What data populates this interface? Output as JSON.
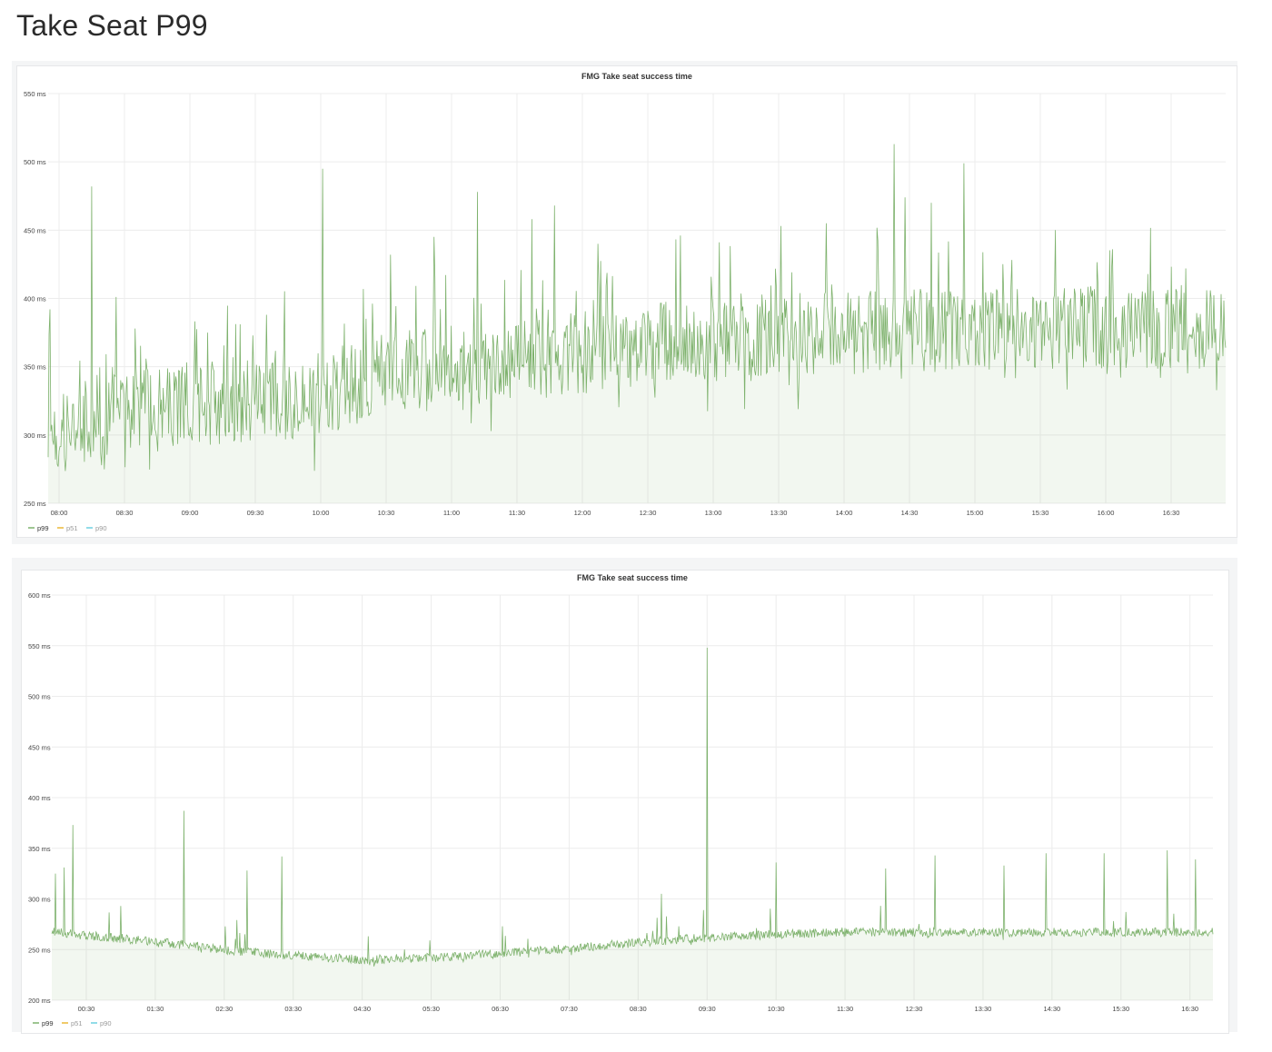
{
  "page": {
    "title": "Take Seat P99"
  },
  "chart_data": [
    {
      "type": "area",
      "title": "FMG Take seat success time",
      "xlabel": "",
      "ylabel": "",
      "y_unit": "ms",
      "ylim": [
        250,
        550
      ],
      "yticks": [
        "250 ms",
        "300 ms",
        "350 ms",
        "400 ms",
        "450 ms",
        "500 ms",
        "550 ms"
      ],
      "xlim": [
        "07:55",
        "16:55"
      ],
      "xticks": [
        "08:00",
        "08:30",
        "09:00",
        "09:30",
        "10:00",
        "10:30",
        "11:00",
        "11:30",
        "12:00",
        "12:30",
        "13:00",
        "13:30",
        "14:00",
        "14:30",
        "15:00",
        "15:30",
        "16:00",
        "16:30"
      ],
      "grid": true,
      "legend_position": "bottom-left",
      "colors": {
        "p99": "#7eb26d",
        "p51": "#eab839",
        "p90": "#6ed0e0"
      },
      "series": [
        {
          "name": "p99",
          "color": "#7eb26d",
          "baseline_ms": [
            [
              "07:55",
              300
            ],
            [
              "08:30",
              320
            ],
            [
              "09:30",
              325
            ],
            [
              "10:00",
              330
            ],
            [
              "10:30",
              345
            ],
            [
              "11:00",
              350
            ],
            [
              "11:30",
              355
            ],
            [
              "12:00",
              360
            ],
            [
              "12:30",
              365
            ],
            [
              "13:00",
              370
            ],
            [
              "14:00",
              375
            ],
            [
              "15:00",
              378
            ],
            [
              "16:55",
              378
            ]
          ],
          "peaks_ms": [
            [
              "07:56",
              392
            ],
            [
              "08:15",
              482
            ],
            [
              "08:35",
              378
            ],
            [
              "09:35",
              388
            ],
            [
              "10:01",
              495
            ],
            [
              "10:32",
              432
            ],
            [
              "10:52",
              445
            ],
            [
              "11:12",
              478
            ],
            [
              "11:37",
              458
            ],
            [
              "11:47",
              468
            ],
            [
              "12:07",
              440
            ],
            [
              "12:45",
              446
            ],
            [
              "13:31",
              453
            ],
            [
              "13:52",
              455
            ],
            [
              "14:23",
              513
            ],
            [
              "14:28",
              474
            ],
            [
              "14:40",
              470
            ],
            [
              "14:55",
              499
            ],
            [
              "16:03",
              436
            ]
          ]
        },
        {
          "name": "p51",
          "color": "#eab839"
        },
        {
          "name": "p90",
          "color": "#6ed0e0"
        }
      ]
    },
    {
      "type": "area",
      "title": "FMG Take seat success time",
      "xlabel": "",
      "ylabel": "",
      "y_unit": "ms",
      "ylim": [
        200,
        600
      ],
      "yticks": [
        "200 ms",
        "250 ms",
        "300 ms",
        "350 ms",
        "400 ms",
        "450 ms",
        "500 ms",
        "550 ms",
        "600 ms"
      ],
      "xlim": [
        "00:00",
        "16:50"
      ],
      "xticks": [
        "00:30",
        "01:30",
        "02:30",
        "03:30",
        "04:30",
        "05:30",
        "06:30",
        "07:30",
        "08:30",
        "09:30",
        "10:30",
        "11:30",
        "12:30",
        "13:30",
        "14:30",
        "15:30",
        "16:30"
      ],
      "grid": true,
      "legend_position": "bottom-left",
      "colors": {
        "p99": "#7eb26d",
        "p51": "#eab839",
        "p90": "#6ed0e0"
      },
      "series": [
        {
          "name": "p99",
          "color": "#7eb26d",
          "baseline_ms": [
            [
              "00:00",
              268
            ],
            [
              "00:30",
              264
            ],
            [
              "01:30",
              258
            ],
            [
              "02:30",
              250
            ],
            [
              "03:30",
              244
            ],
            [
              "04:30",
              240
            ],
            [
              "05:30",
              242
            ],
            [
              "06:30",
              246
            ],
            [
              "07:30",
              251
            ],
            [
              "08:30",
              257
            ],
            [
              "09:30",
              262
            ],
            [
              "10:30",
              265
            ],
            [
              "11:30",
              267
            ],
            [
              "16:50",
              267
            ]
          ],
          "peaks_ms": [
            [
              "00:03",
              325
            ],
            [
              "00:11",
              331
            ],
            [
              "00:18",
              373
            ],
            [
              "01:00",
              293
            ],
            [
              "01:55",
              387
            ],
            [
              "02:50",
              328
            ],
            [
              "03:20",
              342
            ],
            [
              "06:32",
              273
            ],
            [
              "08:50",
              305
            ],
            [
              "09:30",
              548
            ],
            [
              "10:30",
              336
            ],
            [
              "12:05",
              330
            ],
            [
              "12:48",
              343
            ],
            [
              "13:48",
              333
            ],
            [
              "14:25",
              345
            ],
            [
              "15:15",
              345
            ],
            [
              "16:10",
              348
            ],
            [
              "16:35",
              339
            ]
          ]
        },
        {
          "name": "p51",
          "color": "#eab839"
        },
        {
          "name": "p90",
          "color": "#6ed0e0"
        }
      ]
    }
  ]
}
